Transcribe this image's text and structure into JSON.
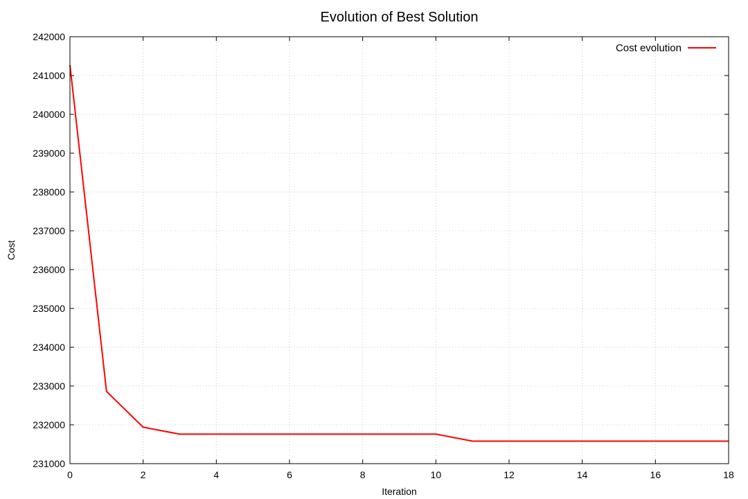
{
  "chart_data": {
    "type": "line",
    "title": "Evolution of Best Solution",
    "xlabel": "Iteration",
    "ylabel": "Cost",
    "xlim": [
      0,
      18
    ],
    "ylim": [
      231000,
      242000
    ],
    "x_ticks": [
      0,
      2,
      4,
      6,
      8,
      10,
      12,
      14,
      16,
      18
    ],
    "y_ticks": [
      231000,
      232000,
      233000,
      234000,
      235000,
      236000,
      237000,
      238000,
      239000,
      240000,
      241000,
      242000
    ],
    "grid": true,
    "legend_position": "top-right",
    "series": [
      {
        "name": "Cost evolution",
        "color": "#ff0000",
        "x": [
          0,
          1,
          2,
          3,
          4,
          5,
          6,
          7,
          8,
          9,
          10,
          11,
          12,
          13,
          14,
          15,
          16,
          17,
          18
        ],
        "y": [
          241270,
          232860,
          231940,
          231760,
          231760,
          231760,
          231760,
          231760,
          231760,
          231760,
          231760,
          231580,
          231580,
          231580,
          231580,
          231580,
          231580,
          231580,
          231580
        ]
      }
    ]
  }
}
